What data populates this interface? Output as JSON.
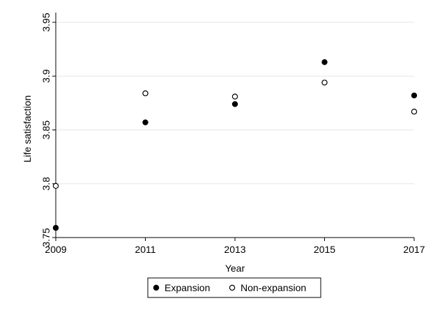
{
  "chart_data": {
    "type": "scatter",
    "xlabel": "Year",
    "ylabel": "Life satisfaction",
    "xlim": [
      2009,
      2017
    ],
    "ylim": [
      3.75,
      3.95
    ],
    "x_ticks": [
      "2009",
      "2011",
      "2013",
      "2015",
      "2017"
    ],
    "y_ticks": [
      "3.75",
      "3.8",
      "3.85",
      "3.9",
      "3.95"
    ],
    "grid": true,
    "legend_position": "bottom",
    "series": [
      {
        "name": "Expansion",
        "marker": "filled-circle",
        "color": "#000000",
        "x": [
          2009,
          2011,
          2013,
          2015,
          2017
        ],
        "y": [
          3.759,
          3.857,
          3.874,
          3.913,
          3.882
        ]
      },
      {
        "name": "Non-expansion",
        "marker": "hollow-circle",
        "color": "#000000",
        "x": [
          2009,
          2011,
          2013,
          2015,
          2017
        ],
        "y": [
          3.798,
          3.884,
          3.881,
          3.894,
          3.867
        ]
      }
    ]
  }
}
